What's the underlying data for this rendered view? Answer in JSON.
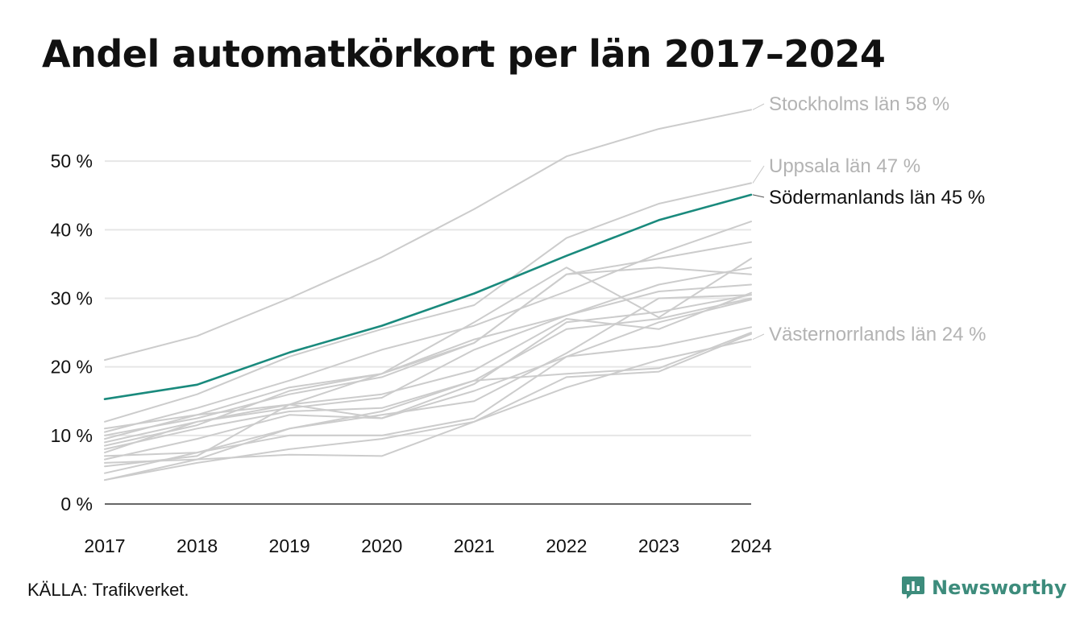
{
  "title": "Andel automatkörkort per län 2017–2024",
  "source": "KÄLLA: Trafikverket.",
  "brand": {
    "name": "Newsworthy",
    "icon": "newsworthy-logo-icon",
    "color": "#3d8c7c"
  },
  "colors": {
    "highlight": "#1a8a7d",
    "other": "#cccccc",
    "grid": "#e6e6e6",
    "axis": "#333333",
    "label_gray": "#b3b3b3"
  },
  "chart_data": {
    "type": "line",
    "title": "Andel automatkörkort per län 2017–2024",
    "xlabel": "",
    "ylabel": "",
    "x": [
      "2017",
      "2018",
      "2019",
      "2020",
      "2021",
      "2022",
      "2023",
      "2024"
    ],
    "ylim": [
      0,
      60
    ],
    "yticks": [
      0,
      10,
      20,
      30,
      40,
      50
    ],
    "ytick_labels": [
      "0 %",
      "10 %",
      "20 %",
      "30 %",
      "40 %",
      "50 %"
    ],
    "grid": true,
    "highlight": "Södermanlands län",
    "labels": [
      {
        "series": "Stockholms län",
        "text": "Stockholms län 58 %",
        "style": "gray"
      },
      {
        "series": "Uppsala län",
        "text": "Uppsala län 47 %",
        "style": "gray"
      },
      {
        "series": "Södermanlands län",
        "text": "Södermanlands län 45 %",
        "style": "dark"
      },
      {
        "series": "Västernorrlands län",
        "text": "Västernorrlands län 24 %",
        "style": "gray"
      }
    ],
    "series": [
      {
        "name": "Stockholms län",
        "values": [
          21,
          24.5,
          30,
          36,
          43,
          50.7,
          54.7,
          57.5
        ]
      },
      {
        "name": "Uppsala län",
        "values": [
          12,
          16,
          21.5,
          25.5,
          29,
          38.8,
          43.8,
          46.8
        ]
      },
      {
        "name": "Södermanlands län",
        "values": [
          15.3,
          17.4,
          22.1,
          26,
          30.7,
          36.2,
          41.4,
          45.1
        ]
      },
      {
        "name": "Västernorrlands län",
        "values": [
          3.5,
          6,
          8,
          9.5,
          12,
          17,
          21,
          24
        ]
      },
      {
        "values": [
          10.5,
          14,
          18,
          22.5,
          26,
          31,
          36.5,
          41.2
        ]
      },
      {
        "values": [
          11,
          13,
          17,
          19,
          23.5,
          33.5,
          35.8,
          38.2
        ]
      },
      {
        "values": [
          9,
          12,
          14.5,
          19,
          26.5,
          34.5,
          27.2,
          35.8
        ]
      },
      {
        "values": [
          8.5,
          11.5,
          16.5,
          19,
          24,
          27.5,
          32,
          34.5
        ]
      },
      {
        "values": [
          10,
          12.5,
          16,
          18.5,
          23.5,
          33.5,
          34.5,
          33.5
        ]
      },
      {
        "values": [
          7.5,
          12,
          14,
          15.5,
          22.5,
          27.5,
          31,
          32
        ]
      },
      {
        "values": [
          9.5,
          13,
          14.5,
          16,
          19.5,
          27,
          25.5,
          30.8
        ]
      },
      {
        "values": [
          5.5,
          7,
          14.5,
          12.5,
          17.5,
          26.5,
          28,
          30.5
        ]
      },
      {
        "values": [
          8,
          11,
          13.5,
          14,
          18,
          25.5,
          27,
          30
        ]
      },
      {
        "values": [
          6.5,
          9.5,
          13,
          12.5,
          16.5,
          21.5,
          26.5,
          29.8
        ]
      },
      {
        "values": [
          3.5,
          6.5,
          11,
          13,
          15,
          22,
          30,
          30.5
        ]
      },
      {
        "values": [
          7,
          7.5,
          10,
          10,
          12.5,
          21.5,
          23,
          25.8
        ]
      },
      {
        "values": [
          4.5,
          7.5,
          11,
          13.5,
          18,
          19,
          19.8,
          25
        ]
      },
      {
        "values": [
          6,
          6.5,
          7.2,
          7,
          12,
          18.5,
          19.3,
          24.8
        ]
      }
    ]
  }
}
